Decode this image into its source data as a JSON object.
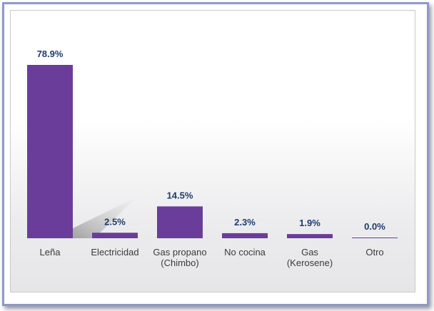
{
  "chart_data": {
    "type": "bar",
    "categories": [
      [
        "Leña"
      ],
      [
        "Electricidad"
      ],
      [
        "Gas propano",
        "(Chimbo)"
      ],
      [
        "No cocina"
      ],
      [
        "Gas",
        "(Kerosene)"
      ],
      [
        "Otro"
      ]
    ],
    "values": [
      78.9,
      2.5,
      14.5,
      2.3,
      1.9,
      0.0
    ],
    "value_labels": [
      "78.9%",
      "2.5%",
      "14.5%",
      "2.3%",
      "1.9%",
      "0.0%"
    ],
    "ylim": [
      0,
      80
    ],
    "grid": false,
    "colors": {
      "bar": "#6a3d9a",
      "value_label": "#1f3b6e",
      "category_label": "#3a3a3a",
      "frame": "#8c9bc7"
    }
  }
}
